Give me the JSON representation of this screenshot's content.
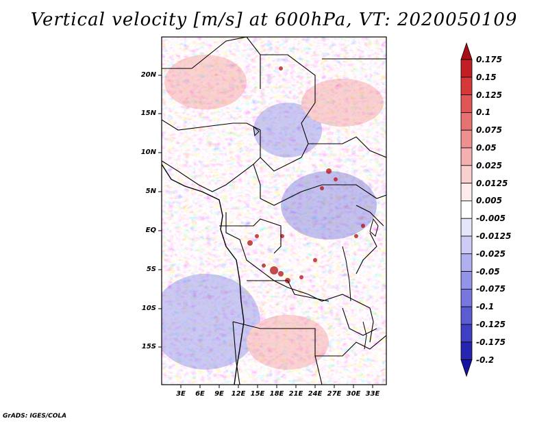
{
  "title": "Vertical velocity [m/s] at 600hPa, VT: 2020050109",
  "credit": "GrADS: IGES/COLA",
  "map": {
    "lat_labels": [
      "20N",
      "15N",
      "10N",
      "5N",
      "EQ",
      "5S",
      "10S",
      "15S"
    ],
    "lon_labels": [
      "3E",
      "6E",
      "9E",
      "12E",
      "15E",
      "18E",
      "21E",
      "24E",
      "27E",
      "30E",
      "33E"
    ]
  },
  "colorbar": {
    "labels": [
      "0.175",
      "0.15",
      "0.125",
      "0.1",
      "0.075",
      "0.05",
      "0.025",
      "0.0125",
      "0.005",
      "-0.005",
      "-0.0125",
      "-0.025",
      "-0.05",
      "-0.075",
      "-0.1",
      "-0.125",
      "-0.175",
      "-0.2"
    ],
    "colors": [
      "#a50f15",
      "#c21f24",
      "#d6383a",
      "#e05555",
      "#e77272",
      "#ee9090",
      "#f4b0b0",
      "#f9cfcf",
      "#fdeaea",
      "#ffffff",
      "#e6e6fb",
      "#ccccf6",
      "#b0b0f0",
      "#9393e8",
      "#7777de",
      "#5b5bd2",
      "#3f3fc4",
      "#2525b0",
      "#1414a0"
    ]
  }
}
